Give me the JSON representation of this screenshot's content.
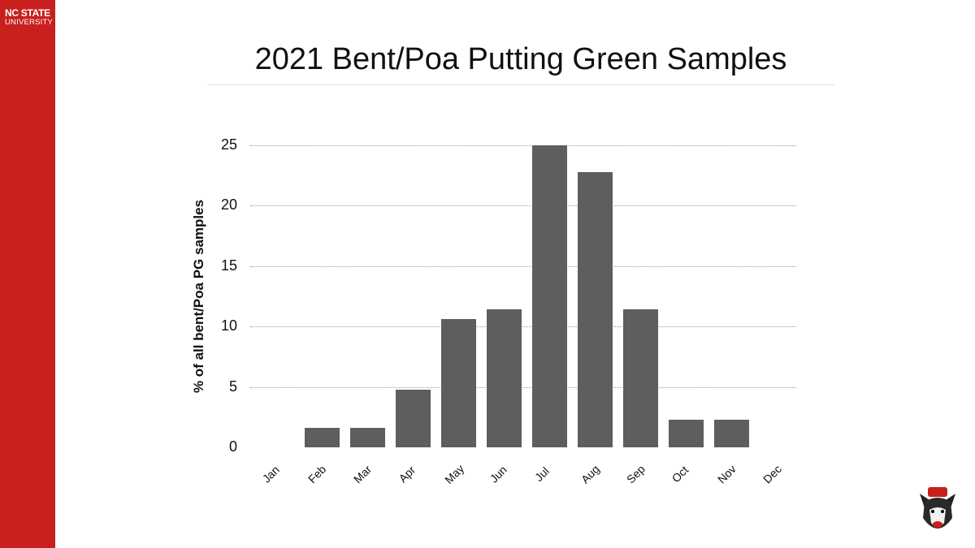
{
  "brand": {
    "line1": "NC STATE",
    "line2": "UNIVERSITY",
    "color": "#c8201e"
  },
  "chart_data": {
    "type": "bar",
    "title": "2021 Bent/Poa Putting Green Samples",
    "xlabel": "",
    "ylabel": "% of all bent/Poa PG samples",
    "categories": [
      "Jan",
      "Feb",
      "Mar",
      "Apr",
      "May",
      "Jun",
      "Jul",
      "Aug",
      "Sep",
      "Oct",
      "Nov",
      "Dec"
    ],
    "values": [
      0,
      1.6,
      1.6,
      4.8,
      10.6,
      11.4,
      25,
      22.8,
      11.4,
      2.3,
      2.3,
      0
    ],
    "yticks": [
      0,
      5,
      10,
      15,
      20,
      25
    ],
    "ylim": [
      0,
      25
    ],
    "grid": true,
    "bar_color": "#5e5e5f"
  }
}
